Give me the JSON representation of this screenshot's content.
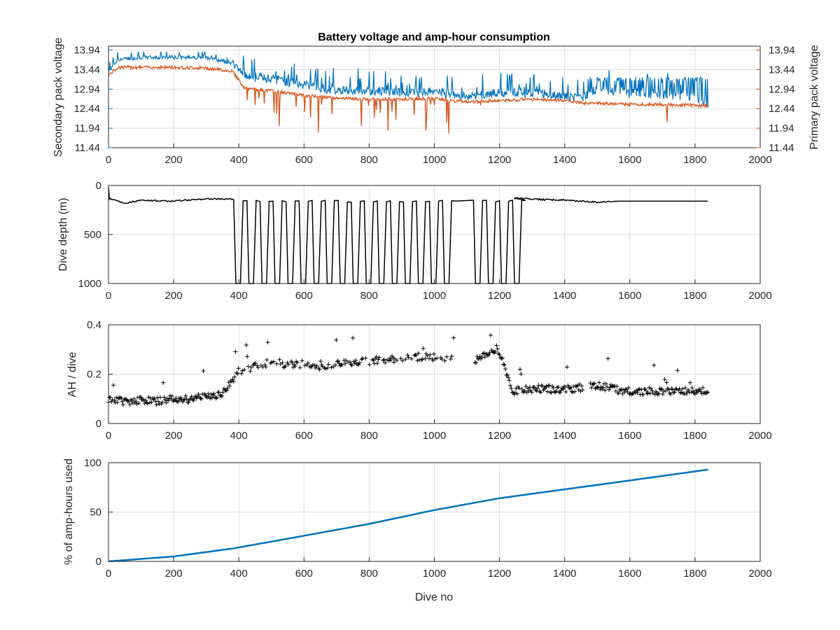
{
  "colors": {
    "secondary": "#0072bd",
    "primary": "#d95319",
    "black": "#000000",
    "axis": "#262626",
    "grid": "#dcdcdc"
  },
  "chart_data": [
    {
      "type": "line",
      "title": "Battery voltage and amp-hour consumption",
      "xlabel": "",
      "ylabel_left": "Secondary pack voltage",
      "ylabel_right": "Primary pack voltage",
      "xlim": [
        0,
        2000
      ],
      "ylim": [
        11.44,
        14.04
      ],
      "x_ticks": [
        "0",
        "200",
        "400",
        "600",
        "800",
        "1000",
        "1200",
        "1400",
        "1600",
        "1800",
        "2000"
      ],
      "y_ticks": [
        "11.44",
        "11.94",
        "12.44",
        "12.94",
        "13.44",
        "13.94"
      ],
      "grid": true,
      "series": [
        {
          "name": "Secondary pack voltage",
          "axis": "left",
          "x": [
            0,
            30,
            100,
            200,
            300,
            380,
            420,
            500,
            600,
            700,
            800,
            900,
            1000,
            1100,
            1200,
            1300,
            1400,
            1450,
            1500,
            1600,
            1700,
            1800,
            1840
          ],
          "y": [
            13.4,
            13.7,
            13.75,
            13.75,
            13.75,
            13.6,
            13.3,
            13.2,
            13.05,
            12.9,
            12.9,
            12.85,
            12.9,
            12.75,
            12.85,
            12.85,
            12.75,
            12.7,
            12.95,
            12.85,
            12.8,
            12.75,
            12.55
          ]
        },
        {
          "name": "Primary pack voltage",
          "axis": "right",
          "x": [
            0,
            30,
            100,
            200,
            300,
            380,
            420,
            500,
            600,
            700,
            800,
            900,
            1000,
            1100,
            1200,
            1300,
            1400,
            1450,
            1500,
            1600,
            1700,
            1800,
            1840
          ],
          "y": [
            13.3,
            13.5,
            13.5,
            13.5,
            13.48,
            13.4,
            12.95,
            12.9,
            12.78,
            12.72,
            12.68,
            12.68,
            12.7,
            12.6,
            12.65,
            12.68,
            12.65,
            12.58,
            12.58,
            12.55,
            12.54,
            12.53,
            12.5
          ]
        }
      ]
    },
    {
      "type": "line",
      "title": "",
      "xlabel": "",
      "ylabel": "Dive depth (m)",
      "xlim": [
        0,
        2000
      ],
      "ylim": [
        1000,
        0
      ],
      "y_reversed": true,
      "x_ticks": [
        "0",
        "200",
        "400",
        "600",
        "800",
        "1000",
        "1200",
        "1400",
        "1600",
        "1800",
        "2000"
      ],
      "y_ticks": [
        "0",
        "500",
        "1000"
      ],
      "grid": true,
      "series": [
        {
          "name": "",
          "shallow_depth": 150,
          "x": [
            0,
            50,
            100,
            200,
            300,
            385,
            1245,
            1300,
            1400,
            1500,
            1560,
            1840
          ],
          "y": [
            130,
            180,
            150,
            160,
            135,
            140,
            130,
            140,
            150,
            170,
            160,
            160
          ]
        }
      ]
    },
    {
      "type": "scatter",
      "title": "",
      "xlabel": "",
      "ylabel": "AH / dive",
      "xlim": [
        0,
        2000
      ],
      "ylim": [
        0,
        0.4
      ],
      "x_ticks": [
        "0",
        "200",
        "400",
        "600",
        "800",
        "1000",
        "1200",
        "1400",
        "1600",
        "1800",
        "2000"
      ],
      "y_ticks": [
        "0",
        "0.2",
        "0.4"
      ],
      "grid": true,
      "series": [
        {
          "name": "",
          "x": [
            0,
            50,
            100,
            150,
            200,
            250,
            300,
            350,
            400,
            450,
            500,
            550,
            600,
            650,
            700,
            750,
            800,
            850,
            900,
            950,
            1000,
            1050,
            1130,
            1160,
            1200,
            1240,
            1300,
            1350,
            1400,
            1450,
            1480,
            1550,
            1600,
            1650,
            1700,
            1750,
            1800,
            1840
          ],
          "y": [
            0.1,
            0.09,
            0.095,
            0.09,
            0.1,
            0.1,
            0.11,
            0.12,
            0.21,
            0.23,
            0.25,
            0.24,
            0.24,
            0.23,
            0.24,
            0.25,
            0.25,
            0.26,
            0.26,
            0.27,
            0.27,
            0.26,
            0.26,
            0.28,
            0.29,
            0.13,
            0.14,
            0.14,
            0.14,
            0.14,
            0.16,
            0.14,
            0.13,
            0.13,
            0.13,
            0.13,
            0.13,
            0.13
          ]
        }
      ]
    },
    {
      "type": "line",
      "title": "",
      "xlabel": "Dive no",
      "ylabel": "% of amp-hours used",
      "xlim": [
        0,
        2000
      ],
      "ylim": [
        0,
        100
      ],
      "x_ticks": [
        "0",
        "200",
        "400",
        "600",
        "800",
        "1000",
        "1200",
        "1400",
        "1600",
        "1800",
        "2000"
      ],
      "y_ticks": [
        "0",
        "50",
        "100"
      ],
      "grid": true,
      "series": [
        {
          "name": "",
          "x": [
            0,
            200,
            380,
            550,
            600,
            800,
            1000,
            1200,
            1400,
            1600,
            1840
          ],
          "y": [
            0,
            5,
            13,
            23,
            26,
            38,
            52,
            64,
            73,
            82,
            93
          ]
        }
      ]
    }
  ]
}
